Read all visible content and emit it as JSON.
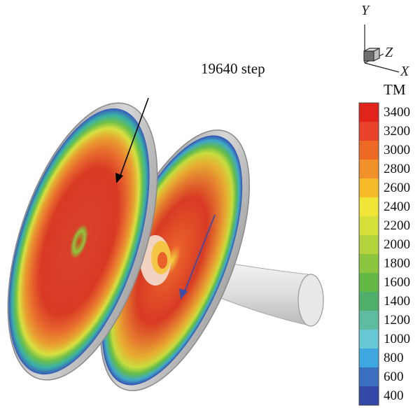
{
  "annotation": {
    "step_label": "19640 step"
  },
  "axes_triad": {
    "y_label": "Y",
    "z_label": "Z",
    "x_label": "X"
  },
  "legend": {
    "title": "TM",
    "ticks": [
      "3400",
      "3200",
      "3000",
      "2800",
      "2600",
      "2400",
      "2200",
      "2000",
      "1800",
      "1600",
      "1400",
      "1200",
      "1000",
      "800",
      "600",
      "400"
    ],
    "colors": [
      "#e2231a",
      "#e8432a",
      "#ee6a24",
      "#f2902a",
      "#f7bb2a",
      "#f0e436",
      "#d5e03a",
      "#b3d43c",
      "#8cc63e",
      "#63b846",
      "#4fae6a",
      "#5ebca0",
      "#66c8d2",
      "#3fa8e0",
      "#3b6fc0",
      "#3349a8"
    ]
  }
}
